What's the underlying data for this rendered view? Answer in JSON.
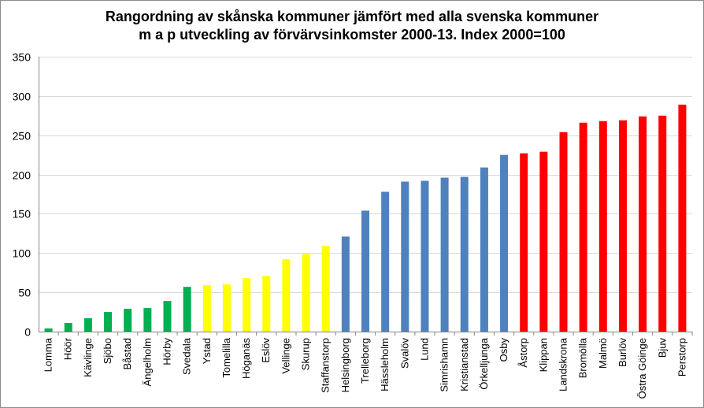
{
  "chart_data": {
    "type": "bar",
    "title_line1": "Rangordning av skånska kommuner jämfört med alla svenska kommuner",
    "title_line2": "m a p utveckling av förvärvsinkomster 2000-13.  Index 2000=100",
    "xlabel": "",
    "ylabel": "",
    "ylim": [
      0,
      350
    ],
    "yticks": [
      0,
      50,
      100,
      150,
      200,
      250,
      300,
      350
    ],
    "grid": true,
    "legend": "none",
    "categories": [
      "Lomma",
      "Höör",
      "Kävlinge",
      "Sjöbo",
      "Båstad",
      "Ängelholm",
      "Hörby",
      "Svedala",
      "Ystad",
      "Tomelilla",
      "Höganäs",
      "Eslöv",
      "Vellinge",
      "Skurup",
      "Staffanstorp",
      "Helsingborg",
      "Trelleborg",
      "Hässleholm",
      "Svalöv",
      "Lund",
      "Simrishamn",
      "Kristianstad",
      "Örkelljunga",
      "Osby",
      "Åstorp",
      "Klippan",
      "Landskrona",
      "Bromölla",
      "Malmö",
      "Burlöv",
      "Östra Göinge",
      "Bjuv",
      "Perstorp"
    ],
    "values": [
      4,
      11,
      17,
      25,
      29,
      30,
      39,
      57,
      59,
      60,
      68,
      71,
      92,
      99,
      109,
      121,
      154,
      178,
      191,
      192,
      196,
      197,
      209,
      225,
      227,
      229,
      254,
      266,
      268,
      269,
      274,
      275,
      289
    ],
    "bar_colors": [
      "#00b050",
      "#00b050",
      "#00b050",
      "#00b050",
      "#00b050",
      "#00b050",
      "#00b050",
      "#00b050",
      "#ffff00",
      "#ffff00",
      "#ffff00",
      "#ffff00",
      "#ffff00",
      "#ffff00",
      "#ffff00",
      "#4f81bd",
      "#4f81bd",
      "#4f81bd",
      "#4f81bd",
      "#4f81bd",
      "#4f81bd",
      "#4f81bd",
      "#4f81bd",
      "#4f81bd",
      "#ff0000",
      "#ff0000",
      "#ff0000",
      "#ff0000",
      "#ff0000",
      "#ff0000",
      "#ff0000",
      "#ff0000",
      "#ff0000"
    ],
    "gridline_color": "#d9d9d9"
  }
}
